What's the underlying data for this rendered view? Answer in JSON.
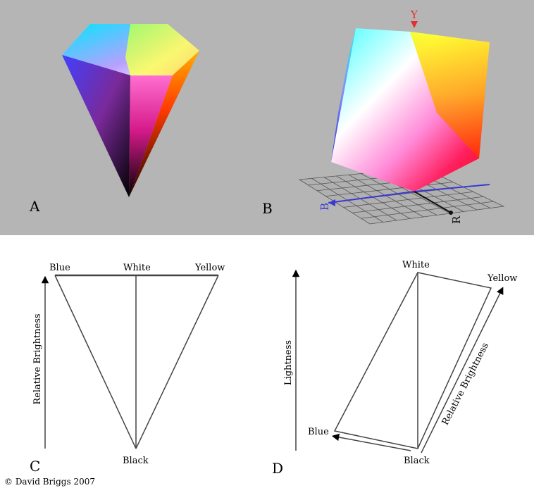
{
  "panels": {
    "a": {
      "letter": "A"
    },
    "b": {
      "letter": "B",
      "axis_labels": {
        "y": "Y",
        "b": "B",
        "r": "R"
      }
    },
    "c": {
      "letter": "C",
      "labels": {
        "blue": "Blue",
        "white": "White",
        "yellow": "Yellow",
        "black": "Black"
      },
      "axis_label": "Relative Brightness"
    },
    "d": {
      "letter": "D",
      "labels": {
        "white": "White",
        "yellow": "Yellow",
        "blue": "Blue",
        "black": "Black"
      },
      "axis_left": "Lightness",
      "axis_right": "Relative Brightness"
    }
  },
  "copyright": "© David Briggs 2007",
  "colors": {
    "background_top": "#b5b5b5",
    "line": "#555555",
    "axis_blue": "#3a3ad0",
    "axis_red": "#e03030"
  }
}
